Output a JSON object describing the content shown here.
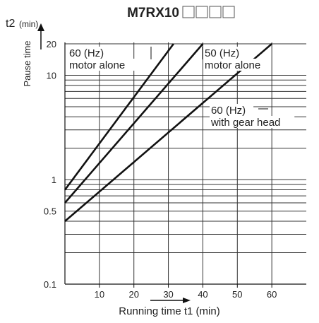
{
  "chart_data": {
    "type": "line",
    "title": "M7RX10",
    "title_suffix_boxes": 4,
    "xlabel": "Running time t1 (min)",
    "ylabel": "Pause time",
    "y_symbol": "t2",
    "y_unit": "(min)",
    "x_scale": "linear",
    "y_scale": "log",
    "xlim": [
      0,
      70
    ],
    "ylim": [
      0.1,
      20
    ],
    "x_ticks": [
      10,
      20,
      30,
      40,
      50,
      60
    ],
    "y_ticks": [
      {
        "value": 0.1,
        "label": "0.1"
      },
      {
        "value": 0.5,
        "label": "0.5"
      },
      {
        "value": 1,
        "label": "1"
      },
      {
        "value": 10,
        "label": "10"
      },
      {
        "value": 20,
        "label": "20"
      }
    ],
    "grid": true,
    "series": [
      {
        "name_lines": [
          "60 (Hz)",
          "motor alone"
        ],
        "x": [
          0,
          31.5
        ],
        "y": [
          0.8,
          20
        ]
      },
      {
        "name_lines": [
          "50 (Hz)",
          "motor alone"
        ],
        "x": [
          0,
          40
        ],
        "y": [
          0.6,
          20
        ]
      },
      {
        "name_lines": [
          "60 (Hz)",
          "with gear head"
        ],
        "x": [
          0,
          60
        ],
        "y": [
          0.4,
          20
        ]
      }
    ]
  }
}
